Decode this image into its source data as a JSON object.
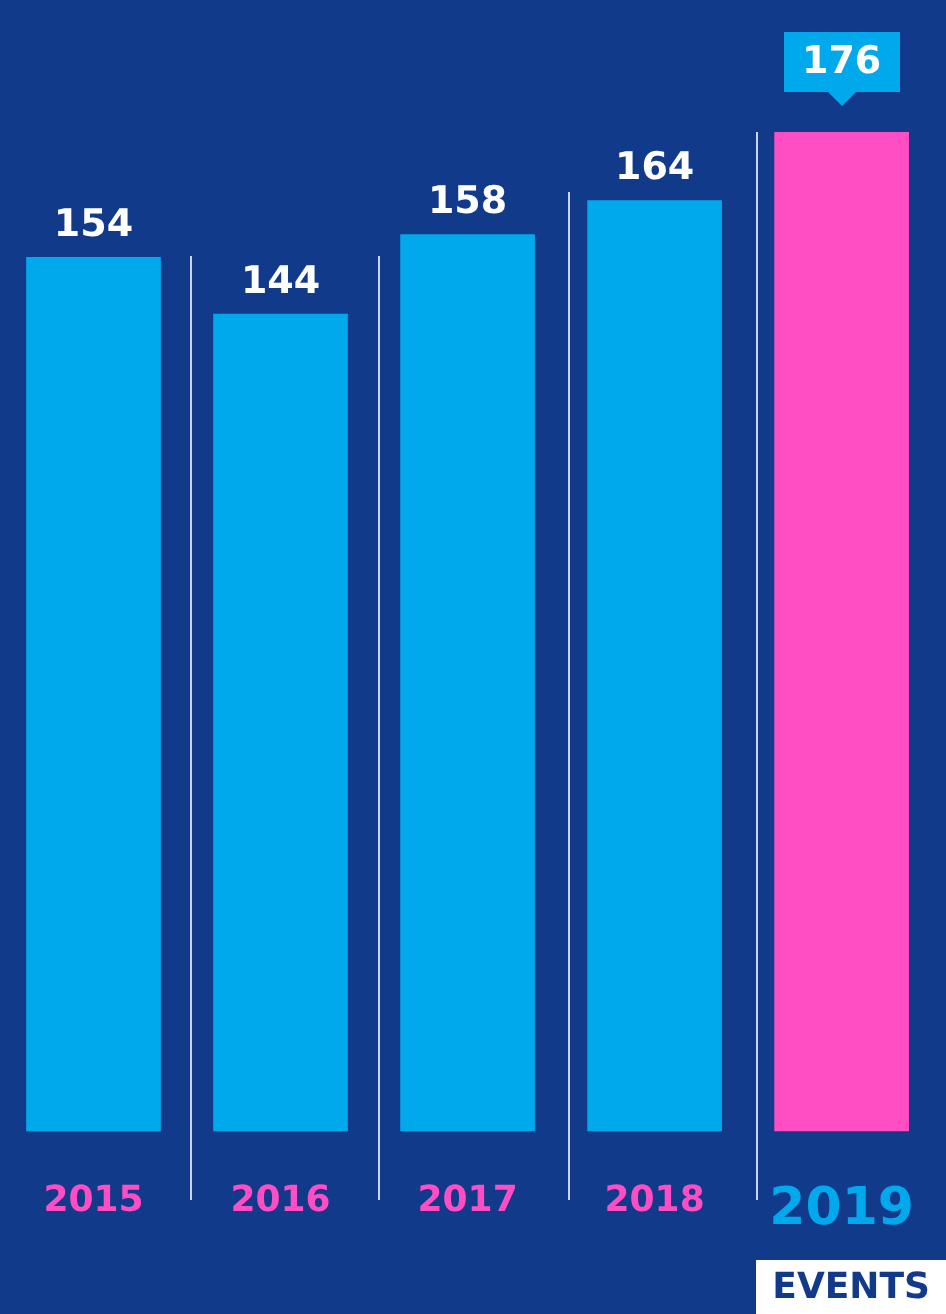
{
  "chart_data": {
    "type": "bar",
    "categories": [
      "2015",
      "2016",
      "2017",
      "2018",
      "2019"
    ],
    "values": [
      154,
      144,
      158,
      164,
      176
    ],
    "colors": [
      "#00a9ec",
      "#00a9ec",
      "#00a9ec",
      "#00a9ec",
      "#ff4dc4"
    ],
    "data_labels": true,
    "grid": false,
    "legend": false,
    "annotations": [
      "EVENTS"
    ]
  }
}
